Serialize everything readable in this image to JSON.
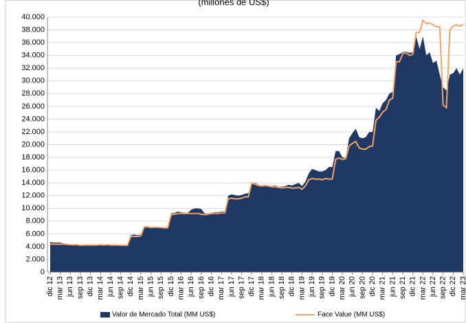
{
  "chart_data": {
    "type": "area-line",
    "title": "(millones de US$)",
    "categories": [
      "dic 12",
      null,
      null,
      "mar 13",
      null,
      null,
      "jun 13",
      null,
      null,
      "sep 13",
      null,
      null,
      "dic 13",
      null,
      null,
      "mar 14",
      null,
      null,
      "jun 14",
      null,
      null,
      "sep 14",
      null,
      null,
      "dic 14",
      null,
      null,
      "mar 15",
      null,
      null,
      "jun 15",
      null,
      null,
      "sep 15",
      null,
      null,
      "dic 15",
      null,
      null,
      "mar 16",
      null,
      null,
      "jun 16",
      null,
      null,
      "sep 16",
      null,
      null,
      "dic 16",
      null,
      null,
      "mar 17",
      null,
      null,
      "jun 17",
      null,
      null,
      "sep 17",
      null,
      null,
      "dic 17",
      null,
      null,
      "mar 18",
      null,
      null,
      "jun 18",
      null,
      null,
      "sep 18",
      null,
      null,
      "dic 18",
      null,
      null,
      "mar 19",
      null,
      null,
      "jun 19",
      null,
      null,
      "sep 19",
      null,
      null,
      "dic 19",
      null,
      null,
      "mar 20",
      null,
      null,
      "jun 20",
      null,
      null,
      "sep 20",
      null,
      null,
      "dic 20",
      null,
      null,
      "mar 21",
      null,
      null,
      "jun 21",
      null,
      null,
      "sep 21",
      null,
      null,
      "dic 21",
      null,
      null,
      "mar 22",
      null,
      null,
      "jun 22",
      null,
      null,
      "sep 22",
      null,
      null,
      "dic 22",
      null,
      null,
      "mar 23"
    ],
    "series": [
      {
        "name": "Valor de Mercado Total (MM US$)",
        "kind": "area",
        "color": "#203864",
        "values": [
          4700,
          4650,
          4650,
          4650,
          4500,
          4400,
          4300,
          4300,
          4300,
          4250,
          4300,
          4300,
          4300,
          4300,
          4300,
          4300,
          4300,
          4350,
          4300,
          4300,
          4300,
          4250,
          4200,
          4250,
          5800,
          5900,
          5800,
          5900,
          7200,
          7200,
          7100,
          7100,
          7100,
          7000,
          7000,
          7000,
          9200,
          9300,
          9500,
          9400,
          9300,
          9300,
          9800,
          10000,
          10000,
          9900,
          9200,
          9200,
          9300,
          9400,
          9400,
          9500,
          9500,
          12000,
          12200,
          12100,
          12000,
          12100,
          12300,
          12400,
          13800,
          14000,
          13700,
          13600,
          13700,
          13600,
          13500,
          13600,
          13400,
          13400,
          13500,
          13700,
          13600,
          13800,
          14000,
          13500,
          14200,
          15500,
          16200,
          16000,
          15800,
          15800,
          16000,
          16500,
          16500,
          19000,
          19000,
          18000,
          17900,
          21000,
          21800,
          22500,
          21200,
          21000,
          21200,
          22000,
          22000,
          25800,
          25300,
          26500,
          27000,
          28000,
          28300,
          34000,
          34200,
          34500,
          34600,
          34400,
          34500,
          37000,
          35000,
          37000,
          34000,
          34500,
          32800,
          33200,
          31000,
          29000,
          28500,
          31000,
          31200,
          32000,
          31000,
          32000
        ]
      },
      {
        "name": "Face Value (MM US$)",
        "kind": "line",
        "color": "#f4a460",
        "values": [
          4400,
          4400,
          4400,
          4400,
          4400,
          4350,
          4300,
          4300,
          4300,
          4200,
          4250,
          4250,
          4250,
          4250,
          4250,
          4300,
          4250,
          4300,
          4250,
          4250,
          4250,
          4200,
          4200,
          4200,
          5600,
          5600,
          5600,
          5700,
          7100,
          7100,
          7000,
          7050,
          7050,
          7000,
          6950,
          6950,
          9000,
          9100,
          9200,
          9200,
          9200,
          9200,
          9200,
          9200,
          9200,
          9100,
          9000,
          9100,
          9200,
          9200,
          9200,
          9300,
          9300,
          11500,
          11600,
          11500,
          11500,
          11600,
          11800,
          11800,
          14000,
          13800,
          13600,
          13500,
          13600,
          13500,
          13400,
          13400,
          13300,
          13200,
          13300,
          13300,
          13200,
          13200,
          13300,
          13000,
          13500,
          14500,
          14700,
          14600,
          14600,
          14500,
          14700,
          14600,
          14600,
          17700,
          17900,
          17700,
          17800,
          19800,
          20200,
          20500,
          19500,
          19300,
          19300,
          19700,
          19800,
          23800,
          24300,
          25100,
          25500,
          27000,
          27300,
          33000,
          33000,
          34300,
          34400,
          34000,
          34200,
          37600,
          37600,
          39500,
          39000,
          39100,
          38800,
          38500,
          38500,
          26200,
          25800,
          38000,
          38600,
          38800,
          38600,
          38900
        ]
      }
    ],
    "ylim": [
      0,
      40000
    ],
    "yticks": [
      0,
      {
        "value": 2000,
        "label": "2.000"
      },
      {
        "value": 4000,
        "label": "4.000"
      },
      {
        "value": 6000,
        "label": "6.000"
      },
      {
        "value": 8000,
        "label": "8.000"
      },
      {
        "value": 10000,
        "label": "10.000"
      },
      {
        "value": 12000,
        "label": "12.000"
      },
      {
        "value": 14000,
        "label": "14.000"
      },
      {
        "value": 16000,
        "label": "16.000"
      },
      {
        "value": 18000,
        "label": "18.000"
      },
      {
        "value": 20000,
        "label": "20.000"
      },
      {
        "value": 22000,
        "label": "22.000"
      },
      {
        "value": 24000,
        "label": "24.000"
      },
      {
        "value": 26000,
        "label": "26.000"
      },
      {
        "value": 28000,
        "label": "28.000"
      },
      {
        "value": 30000,
        "label": "30.000"
      },
      {
        "value": 32000,
        "label": "32.000"
      },
      {
        "value": 34000,
        "label": "34.000"
      },
      {
        "value": 36000,
        "label": "36.000"
      },
      {
        "value": 38000,
        "label": "38.000"
      },
      {
        "value": 40000,
        "label": "40.000"
      }
    ],
    "grid": true,
    "legend": "bottom"
  }
}
